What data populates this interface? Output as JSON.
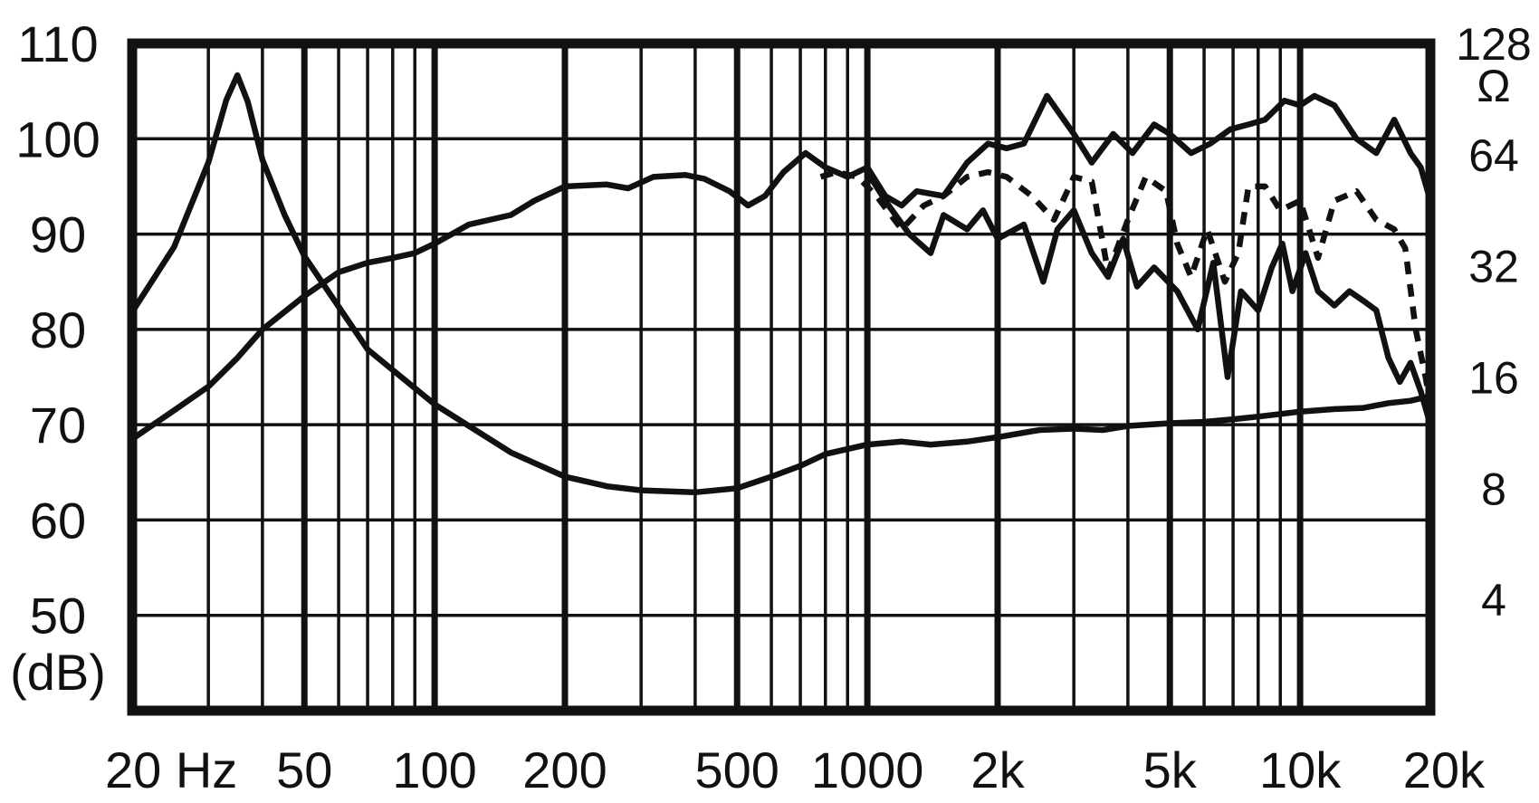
{
  "chart_data": {
    "type": "line",
    "xlabel": "",
    "ylabel": "(dB)",
    "y2label": "Ω",
    "x_scale": "log",
    "xlim": [
      20,
      20000
    ],
    "ylim": [
      40,
      110
    ],
    "y2lim": [
      2,
      128
    ],
    "y2_scale": "log2",
    "grid": true,
    "line_color": "#111111",
    "x_ticks": [
      {
        "value": 20,
        "label": "20 Hz"
      },
      {
        "value": 50,
        "label": "50"
      },
      {
        "value": 100,
        "label": "100"
      },
      {
        "value": 200,
        "label": "200"
      },
      {
        "value": 500,
        "label": "500"
      },
      {
        "value": 1000,
        "label": "1000"
      },
      {
        "value": 2000,
        "label": "2k"
      },
      {
        "value": 5000,
        "label": "5k"
      },
      {
        "value": 10000,
        "label": "10k"
      },
      {
        "value": 20000,
        "label": "20k"
      }
    ],
    "y_ticks": [
      {
        "value": 110,
        "label": "110"
      },
      {
        "value": 100,
        "label": "100"
      },
      {
        "value": 90,
        "label": "90"
      },
      {
        "value": 80,
        "label": "80"
      },
      {
        "value": 70,
        "label": "70"
      },
      {
        "value": 60,
        "label": "60"
      },
      {
        "value": 50,
        "label": "50"
      }
    ],
    "y2_ticks": [
      {
        "value": 128,
        "label": "128"
      },
      {
        "value": 64,
        "label": "64"
      },
      {
        "value": 32,
        "label": "32"
      },
      {
        "value": 16,
        "label": "16"
      },
      {
        "value": 8,
        "label": "8"
      },
      {
        "value": 4,
        "label": "4"
      }
    ],
    "series": [
      {
        "axis": "y",
        "style": "solid",
        "points": [
          [
            20,
            68.5
          ],
          [
            25,
            71.5
          ],
          [
            30,
            74
          ],
          [
            35,
            77
          ],
          [
            40,
            80
          ],
          [
            50,
            83.5
          ],
          [
            60,
            86
          ],
          [
            70,
            87
          ],
          [
            80,
            87.5
          ],
          [
            90,
            88
          ],
          [
            100,
            89
          ],
          [
            120,
            91
          ],
          [
            150,
            92
          ],
          [
            170,
            93.5
          ],
          [
            200,
            95
          ],
          [
            250,
            95.2
          ],
          [
            280,
            94.8
          ],
          [
            320,
            96
          ],
          [
            380,
            96.2
          ],
          [
            420,
            95.8
          ],
          [
            480,
            94.5
          ],
          [
            530,
            93
          ],
          [
            580,
            94
          ],
          [
            640,
            96.5
          ],
          [
            720,
            98.5
          ],
          [
            800,
            97
          ],
          [
            900,
            96
          ],
          [
            1000,
            97
          ],
          [
            1100,
            94
          ],
          [
            1200,
            93
          ],
          [
            1300,
            94.5
          ],
          [
            1500,
            94
          ],
          [
            1700,
            97.5
          ],
          [
            1900,
            99.5
          ],
          [
            2100,
            99
          ],
          [
            2300,
            99.5
          ],
          [
            2600,
            104.5
          ],
          [
            3000,
            100.5
          ],
          [
            3300,
            97.5
          ],
          [
            3700,
            100.5
          ],
          [
            4100,
            98.5
          ],
          [
            4600,
            101.5
          ],
          [
            5000,
            100.5
          ],
          [
            5600,
            98.5
          ],
          [
            6200,
            99.5
          ],
          [
            6900,
            101
          ],
          [
            7600,
            101.5
          ],
          [
            8300,
            102
          ],
          [
            9200,
            104
          ],
          [
            10000,
            103.5
          ],
          [
            10800,
            104.5
          ],
          [
            12000,
            103.5
          ],
          [
            13500,
            100
          ],
          [
            15000,
            98.5
          ],
          [
            16500,
            102
          ],
          [
            18000,
            98.5
          ],
          [
            19000,
            97
          ],
          [
            20000,
            93.5
          ]
        ]
      },
      {
        "axis": "y",
        "style": "dashed",
        "points": [
          [
            780,
            96
          ],
          [
            850,
            96.5
          ],
          [
            950,
            96
          ],
          [
            1050,
            94
          ],
          [
            1200,
            90.5
          ],
          [
            1350,
            93
          ],
          [
            1500,
            94
          ],
          [
            1700,
            96
          ],
          [
            1900,
            96.5
          ],
          [
            2100,
            96
          ],
          [
            2400,
            94
          ],
          [
            2700,
            91.5
          ],
          [
            3000,
            96
          ],
          [
            3300,
            95.5
          ],
          [
            3600,
            86
          ],
          [
            4000,
            91.5
          ],
          [
            4400,
            96
          ],
          [
            4900,
            94.5
          ],
          [
            5200,
            89
          ],
          [
            5600,
            85.5
          ],
          [
            6100,
            90.5
          ],
          [
            6700,
            85
          ],
          [
            7200,
            88
          ],
          [
            7600,
            95
          ],
          [
            8300,
            95
          ],
          [
            9000,
            92.5
          ],
          [
            10000,
            93.5
          ],
          [
            11000,
            87.5
          ],
          [
            12000,
            93.5
          ],
          [
            13500,
            94.5
          ],
          [
            15000,
            91.5
          ],
          [
            16500,
            90.5
          ],
          [
            17500,
            88.5
          ],
          [
            18500,
            80
          ],
          [
            19500,
            75
          ],
          [
            20000,
            72
          ]
        ]
      },
      {
        "axis": "y",
        "style": "solid",
        "points": [
          [
            1000,
            96.5
          ],
          [
            1100,
            93.5
          ],
          [
            1250,
            90
          ],
          [
            1400,
            88
          ],
          [
            1500,
            92
          ],
          [
            1700,
            90.5
          ],
          [
            1850,
            92.5
          ],
          [
            2000,
            89.5
          ],
          [
            2300,
            91
          ],
          [
            2550,
            85
          ],
          [
            2750,
            90.5
          ],
          [
            3000,
            92.5
          ],
          [
            3300,
            88
          ],
          [
            3600,
            85.5
          ],
          [
            3900,
            89.5
          ],
          [
            4200,
            84.5
          ],
          [
            4600,
            86.5
          ],
          [
            5200,
            84
          ],
          [
            5800,
            80
          ],
          [
            6300,
            87
          ],
          [
            6800,
            75
          ],
          [
            7300,
            84
          ],
          [
            8000,
            82
          ],
          [
            8600,
            86.5
          ],
          [
            9100,
            89
          ],
          [
            9600,
            84
          ],
          [
            10300,
            88
          ],
          [
            11000,
            84
          ],
          [
            12000,
            82.5
          ],
          [
            13000,
            84
          ],
          [
            14000,
            83
          ],
          [
            15000,
            82
          ],
          [
            16000,
            77
          ],
          [
            17000,
            74.5
          ],
          [
            18000,
            76.5
          ],
          [
            19000,
            73.5
          ],
          [
            20000,
            70
          ]
        ]
      },
      {
        "axis": "y2",
        "style": "solid",
        "points": [
          [
            20,
            24
          ],
          [
            25,
            36
          ],
          [
            30,
            61
          ],
          [
            33,
            90
          ],
          [
            35,
            105
          ],
          [
            37,
            89
          ],
          [
            40,
            62
          ],
          [
            45,
            44
          ],
          [
            50,
            34
          ],
          [
            70,
            19
          ],
          [
            100,
            13.5
          ],
          [
            150,
            10
          ],
          [
            200,
            8.6
          ],
          [
            250,
            8.1
          ],
          [
            300,
            7.9
          ],
          [
            400,
            7.8
          ],
          [
            500,
            8
          ],
          [
            600,
            8.6
          ],
          [
            700,
            9.2
          ],
          [
            800,
            9.9
          ],
          [
            1000,
            10.5
          ],
          [
            1200,
            10.7
          ],
          [
            1400,
            10.5
          ],
          [
            1700,
            10.7
          ],
          [
            2000,
            11
          ],
          [
            2500,
            11.5
          ],
          [
            3000,
            11.6
          ],
          [
            3500,
            11.5
          ],
          [
            4000,
            11.8
          ],
          [
            5000,
            12
          ],
          [
            6000,
            12.1
          ],
          [
            7000,
            12.3
          ],
          [
            8000,
            12.5
          ],
          [
            10000,
            12.9
          ],
          [
            12000,
            13.1
          ],
          [
            14000,
            13.2
          ],
          [
            16000,
            13.6
          ],
          [
            18000,
            13.8
          ],
          [
            20000,
            14.2
          ]
        ]
      }
    ]
  }
}
